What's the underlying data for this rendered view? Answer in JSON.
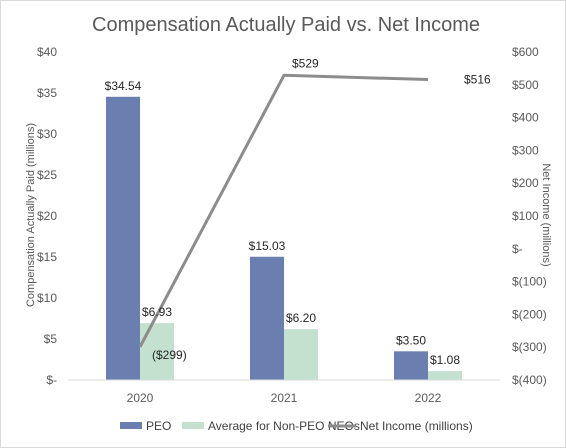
{
  "chart_data": {
    "type": "bar",
    "title": "Compensation Actually Paid vs. Net Income",
    "categories": [
      "2020",
      "2021",
      "2022"
    ],
    "ylabel": "Compensation Actually Paid (millions)",
    "y2label": "Net Income (millions)",
    "ylim": [
      0,
      40
    ],
    "y2lim": [
      -400,
      600
    ],
    "y_ticks": [
      {
        "value": 0,
        "label": "$-"
      },
      {
        "value": 5,
        "label": "$5"
      },
      {
        "value": 10,
        "label": "$10"
      },
      {
        "value": 15,
        "label": "$15"
      },
      {
        "value": 20,
        "label": "$20"
      },
      {
        "value": 25,
        "label": "$25"
      },
      {
        "value": 30,
        "label": "$30"
      },
      {
        "value": 35,
        "label": "$35"
      },
      {
        "value": 40,
        "label": "$40"
      }
    ],
    "y2_ticks": [
      {
        "value": -400,
        "label": "$(400)"
      },
      {
        "value": -300,
        "label": "$(300)"
      },
      {
        "value": -200,
        "label": "$(200)"
      },
      {
        "value": -100,
        "label": "$(100)"
      },
      {
        "value": 0,
        "label": "$-"
      },
      {
        "value": 100,
        "label": "$100"
      },
      {
        "value": 200,
        "label": "$200"
      },
      {
        "value": 300,
        "label": "$300"
      },
      {
        "value": 400,
        "label": "$400"
      },
      {
        "value": 500,
        "label": "$500"
      },
      {
        "value": 600,
        "label": "$600"
      }
    ],
    "grid": false,
    "legend_position": "bottom",
    "series": [
      {
        "name": "PEO",
        "type": "bar",
        "axis": "left",
        "color": "#6b7eb0",
        "values": [
          34.54,
          15.03,
          3.5
        ],
        "labels": [
          "$34.54",
          "$15.03",
          "$3.50"
        ]
      },
      {
        "name": "Average for Non-PEO NEOs",
        "type": "bar",
        "axis": "left",
        "color": "#c4e0cf",
        "values": [
          6.93,
          6.2,
          1.08
        ],
        "labels": [
          "$6.93",
          "$6.20",
          "$1.08"
        ]
      },
      {
        "name": "Net Income (millions)",
        "type": "line",
        "axis": "right",
        "color": "#8c8c8c",
        "values": [
          -299,
          529,
          516
        ],
        "labels": [
          "($299)",
          "$529",
          "$516"
        ]
      }
    ]
  }
}
